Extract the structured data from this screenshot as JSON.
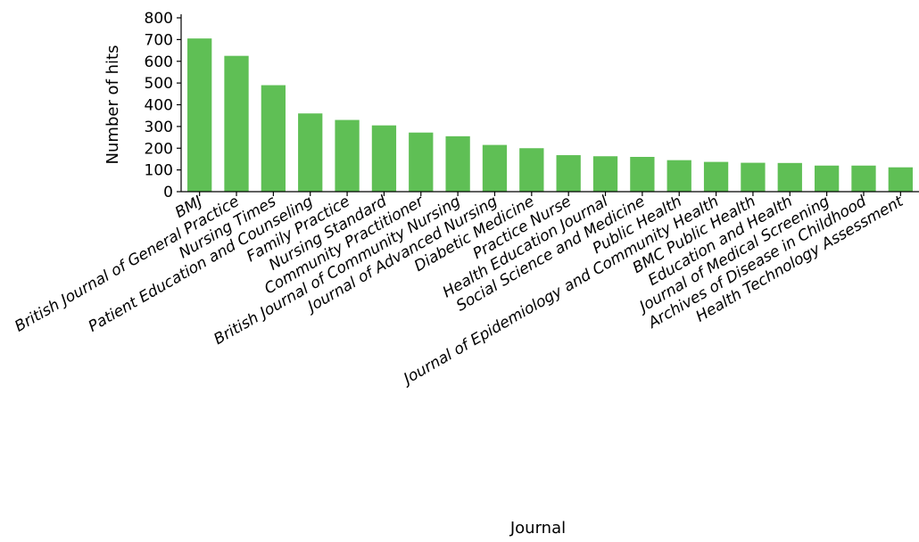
{
  "chart_data": {
    "type": "bar",
    "xlabel": "Journal",
    "ylabel": "Number of hits",
    "ylim": [
      0,
      800
    ],
    "yticks": [
      0,
      100,
      200,
      300,
      400,
      500,
      600,
      700,
      800
    ],
    "grid": false,
    "bar_color": "#5fbf55",
    "categories": [
      "BMJ",
      "British Journal of General Practice",
      "Nursing Times",
      "Patient Education and Counseling",
      "Family Practice",
      "Nursing Standard",
      "Community Practitioner",
      "British Journal of Community Nursing",
      "Journal of Advanced Nursing",
      "Diabetic Medicine",
      "Practice Nurse",
      "Health Education Journal",
      "Social Science and Medicine",
      "Public Health",
      "Journal of Epidemiology and Community Health",
      "BMC Public Health",
      "Education and Health",
      "Journal of Medical Screening",
      "Archives of Disease in Childhood",
      "Health Technology Assessment"
    ],
    "values": [
      705,
      625,
      490,
      360,
      330,
      305,
      272,
      255,
      215,
      200,
      168,
      163,
      160,
      145,
      137,
      133,
      132,
      120,
      120,
      112
    ]
  }
}
